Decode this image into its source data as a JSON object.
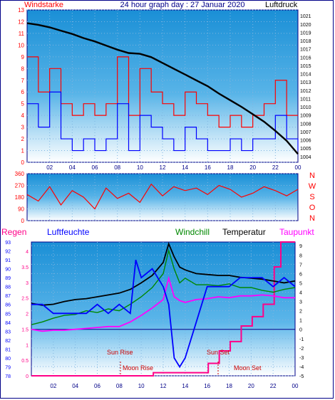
{
  "header": {
    "wind_label": "Windstarke",
    "title": "24 hour graph day : 27 Januar 2020",
    "pressure_label": "Luftdruck"
  },
  "colors": {
    "frame": "#000088",
    "wind_speed": "#ff0000",
    "wind_gust": "#0000ff",
    "pressure": "#000000",
    "direction": "#ff0000",
    "humidity": "#0000ff",
    "temperature": "#000000",
    "windchill": "#008800",
    "dewpoint": "#ff00ff",
    "rain": "#ff0088",
    "sun_text": "#cc0000",
    "grid": "#6699cc",
    "plot_bg_top": "#1a8fd6",
    "plot_bg_bottom": "#ffffff"
  },
  "x_ticks": [
    "02",
    "04",
    "06",
    "08",
    "10",
    "12",
    "14",
    "16",
    "18",
    "20",
    "22",
    "00"
  ],
  "direction": {
    "ticks": [
      "360",
      "270",
      "180",
      "90",
      "0"
    ],
    "compass": [
      "N",
      "W",
      "S",
      "O",
      "N"
    ]
  },
  "legend": {
    "rain": "Regen",
    "humidity": "Luftfeuchte",
    "windchill": "Windchill",
    "temperature": "Temperatur",
    "dewpoint": "Taupunkt"
  },
  "annotations": {
    "sun_rise": "Sun Rise",
    "sun_set": "Sun Set",
    "moon_rise": "Moon Rise",
    "moon_set": "Moon Set"
  },
  "chart_data": [
    {
      "type": "line",
      "title": "24 hour graph day : 27 Januar 2020",
      "left_axis": {
        "label": "Windstarke",
        "ticks": [
          "0",
          "1",
          "2",
          "3",
          "4",
          "5",
          "6",
          "7",
          "8",
          "9",
          "10",
          "11",
          "12",
          "13"
        ],
        "range": [
          0,
          13
        ]
      },
      "right_axis": {
        "label": "Luftdruck",
        "ticks": [
          "1004",
          "1005",
          "1006",
          "1007",
          "1008",
          "1009",
          "1010",
          "1011",
          "1012",
          "1013",
          "1014",
          "1015",
          "1016",
          "1017",
          "1018",
          "1019",
          "1020",
          "1021"
        ],
        "range": [
          1003.3,
          1021.7
        ]
      },
      "x_range_hours": [
        0,
        24
      ],
      "series": [
        {
          "color": "#000000",
          "axis": "right",
          "x": [
            0,
            1,
            2,
            3,
            4,
            5,
            6,
            7,
            8,
            9,
            10,
            11,
            12,
            13,
            14,
            15,
            16,
            17,
            18,
            19,
            20,
            21,
            22,
            23,
            24
          ],
          "values": [
            1020.1,
            1019.9,
            1019.6,
            1019.2,
            1018.8,
            1018.3,
            1017.9,
            1017.4,
            1016.9,
            1016.5,
            1016.4,
            1016.0,
            1015.3,
            1014.6,
            1013.9,
            1013.2,
            1012.5,
            1011.6,
            1010.8,
            1010.0,
            1009.1,
            1008.2,
            1007.1,
            1005.9,
            1004.3
          ]
        },
        {
          "color": "#ff0000",
          "axis": "left",
          "x": [
            0,
            1,
            2,
            3,
            4,
            5,
            6,
            7,
            8,
            9,
            10,
            11,
            12,
            13,
            14,
            15,
            16,
            17,
            18,
            19,
            20,
            21,
            22,
            23,
            24
          ],
          "values": [
            9,
            6,
            8,
            5,
            4,
            5,
            4,
            5,
            9,
            4,
            8,
            6,
            5,
            4,
            6,
            5,
            4,
            3,
            4,
            3,
            4,
            5,
            7,
            4,
            4
          ]
        },
        {
          "color": "#0000ff",
          "axis": "left",
          "x": [
            0,
            1,
            2,
            3,
            4,
            5,
            6,
            7,
            8,
            9,
            10,
            11,
            12,
            13,
            14,
            15,
            16,
            17,
            18,
            19,
            20,
            21,
            22,
            23,
            24
          ],
          "values": [
            5,
            3,
            6,
            2,
            1,
            2,
            1,
            2,
            5,
            1,
            4,
            3,
            2,
            1,
            3,
            2,
            1,
            1,
            2,
            1,
            2,
            2,
            4,
            2,
            1
          ]
        }
      ]
    },
    {
      "type": "line",
      "y_axis": {
        "ticks": [
          "360",
          "270",
          "180",
          "90",
          "0"
        ],
        "range": [
          0,
          360
        ]
      },
      "x_range_hours": [
        0,
        24
      ],
      "series": [
        {
          "color": "#ff0000",
          "x": [
            0,
            1,
            2,
            3,
            4,
            5,
            6,
            7,
            8,
            9,
            10,
            11,
            12,
            13,
            14,
            15,
            16,
            17,
            18,
            19,
            20,
            21,
            22,
            23,
            24
          ],
          "values": [
            200,
            150,
            260,
            120,
            230,
            180,
            90,
            250,
            170,
            210,
            140,
            280,
            190,
            260,
            230,
            250,
            200,
            270,
            240,
            180,
            210,
            260,
            230,
            190,
            240
          ]
        }
      ]
    },
    {
      "type": "line",
      "x_range_hours": [
        0,
        24
      ],
      "left_axis": {
        "label": "Luftfeuchte",
        "ticks": [
          "78",
          "79",
          "80",
          "81",
          "82",
          "83",
          "84",
          "85",
          "86",
          "87",
          "88",
          "89",
          "90",
          "91",
          "92",
          "93"
        ],
        "range": [
          78,
          93
        ]
      },
      "rain_axis": {
        "label": "Regen",
        "ticks": [
          "0",
          "0.5",
          "1",
          "1.5",
          "2",
          "2.5",
          "3",
          "3.5",
          "4"
        ],
        "range": [
          0,
          4.3
        ]
      },
      "right_axis": {
        "label": "Taupunkt",
        "ticks": [
          "9",
          "8",
          "7",
          "6",
          "5",
          "4",
          "3",
          "2",
          "1",
          "0",
          "-1",
          "-2",
          "-3",
          "-4",
          "-5"
        ],
        "range": [
          -5,
          9.4
        ]
      },
      "series": [
        {
          "name": "Luftfeuchte",
          "color": "#0000ff",
          "axis": "left",
          "x": [
            0,
            1,
            2,
            3,
            4,
            5,
            6,
            7,
            8,
            9,
            9.5,
            10,
            11,
            12,
            12.5,
            13,
            13.5,
            14,
            15,
            16,
            17,
            18,
            19,
            20,
            21,
            22,
            23,
            24
          ],
          "values": [
            86,
            86,
            85,
            85,
            85,
            85,
            86,
            85,
            86,
            85,
            91,
            89,
            90,
            88,
            86,
            80,
            79,
            80,
            84,
            88,
            88,
            88,
            89,
            89,
            89,
            88,
            89,
            88
          ]
        },
        {
          "name": "Temperatur",
          "color": "#000000",
          "axis": "right",
          "x": [
            0,
            1,
            2,
            3,
            4,
            5,
            6,
            7,
            8,
            9,
            10,
            11,
            12,
            12.5,
            13,
            13.5,
            14,
            15,
            16,
            17,
            18,
            19,
            20,
            21,
            22,
            23,
            24
          ],
          "values": [
            2.8,
            2.6,
            2.7,
            3.0,
            3.2,
            3.3,
            3.5,
            3.7,
            3.9,
            4.3,
            5.0,
            5.8,
            7.2,
            9.2,
            7.8,
            6.7,
            6.4,
            6.0,
            5.9,
            5.8,
            5.8,
            5.6,
            5.5,
            5.4,
            5.2,
            5.0,
            5.2
          ]
        },
        {
          "name": "Windchill",
          "color": "#008800",
          "axis": "right",
          "x": [
            0,
            1,
            2,
            3,
            4,
            5,
            6,
            7,
            8,
            9,
            10,
            11,
            12,
            12.5,
            13,
            13.5,
            14,
            15,
            16,
            17,
            18,
            19,
            20,
            21,
            22,
            23,
            24
          ],
          "values": [
            0.5,
            0.8,
            1.2,
            1.5,
            1.6,
            2.0,
            1.8,
            2.2,
            2.0,
            2.7,
            3.5,
            4.5,
            6.0,
            8.5,
            6.5,
            5.0,
            5.5,
            4.8,
            4.8,
            4.7,
            4.9,
            4.5,
            4.5,
            4.2,
            4.0,
            4.3,
            4.5
          ]
        },
        {
          "name": "Taupunkt",
          "color": "#ff00ff",
          "axis": "right",
          "x": [
            0,
            1,
            2,
            3,
            4,
            5,
            6,
            7,
            8,
            9,
            10,
            11,
            12,
            12.5,
            13,
            13.5,
            14,
            15,
            16,
            17,
            18,
            19,
            20,
            21,
            22,
            23,
            24
          ],
          "values": [
            0.0,
            -0.2,
            -0.1,
            -0.1,
            0.0,
            0.1,
            0.2,
            0.3,
            0.3,
            0.8,
            1.5,
            2.3,
            3.2,
            5.5,
            3.5,
            3.1,
            2.9,
            3.2,
            3.3,
            3.5,
            3.4,
            3.6,
            3.6,
            3.7,
            3.6,
            3.4,
            3.4
          ]
        },
        {
          "name": "Regen",
          "color": "#ff0088",
          "axis": "rain",
          "x": [
            0,
            11,
            11.1,
            16,
            16.1,
            17,
            17.1,
            18,
            18.1,
            19,
            19.1,
            20,
            20.1,
            21,
            21.1,
            22,
            22.1,
            22.6,
            22.7,
            24
          ],
          "values": [
            0,
            0,
            0.1,
            0.1,
            0.4,
            0.4,
            0.8,
            0.8,
            1.1,
            1.1,
            1.6,
            1.6,
            1.9,
            1.9,
            2.3,
            2.3,
            3.5,
            3.5,
            4.3,
            4.3
          ]
        }
      ]
    }
  ]
}
